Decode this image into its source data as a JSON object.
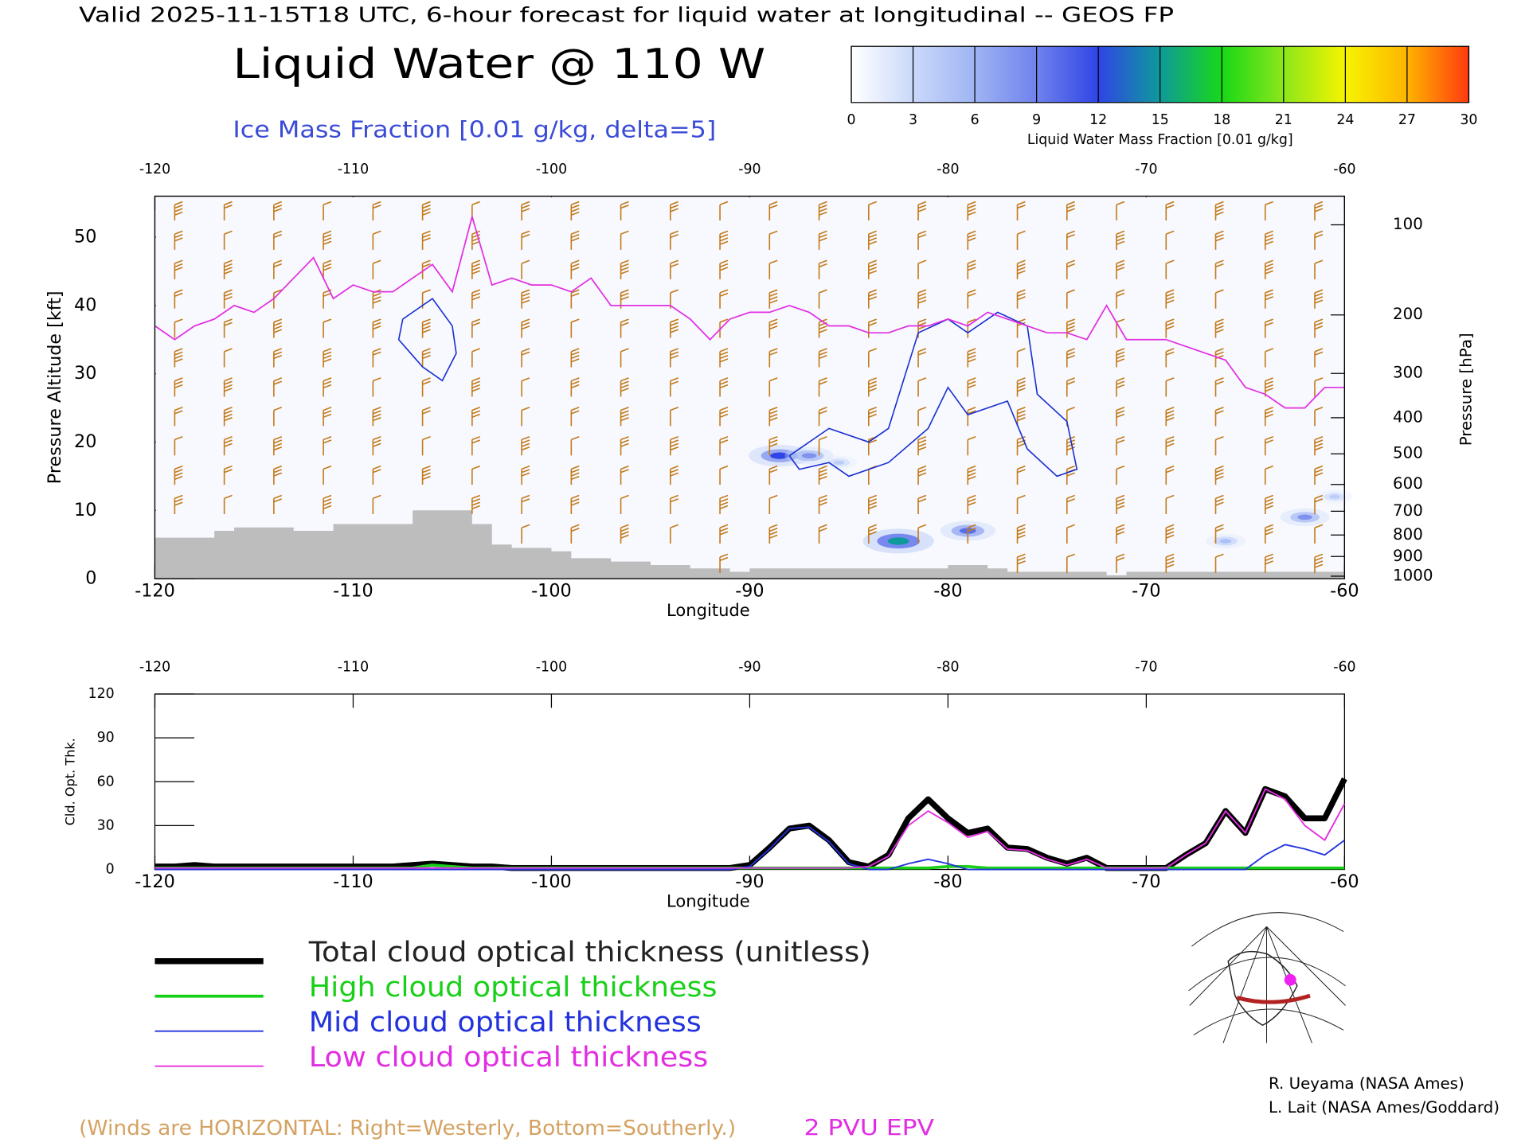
{
  "header": {
    "valid": "Valid 2025-11-15T18 UTC, 6-hour forecast for liquid water at longitudinal -- GEOS FP",
    "title": "Liquid Water @ 110 W",
    "subtitle": "Ice Mass Fraction [0.01 g/kg, delta=5]"
  },
  "colorbar": {
    "label": "Liquid Water Mass Fraction [0.01 g/kg]",
    "ticks": [
      0,
      3,
      6,
      9,
      12,
      15,
      18,
      21,
      24,
      27,
      30
    ],
    "colors": [
      "#ffffff",
      "#cad9fa",
      "#9fb4f3",
      "#6f82ec",
      "#2f45e6",
      "#0e9a9a",
      "#18d818",
      "#8ce61a",
      "#f6f400",
      "#ffb400",
      "#ff3a10"
    ]
  },
  "chart_data": [
    {
      "type": "contour",
      "xlabel": "Longitude",
      "ylabel": "Pressure Altitude [kft]",
      "y2label": "Pressure [hPa]",
      "xlim": [
        -120,
        -60
      ],
      "xticks": [
        -120,
        -110,
        -100,
        -90,
        -80,
        -70,
        -60
      ],
      "ylim": [
        0,
        56
      ],
      "yticks": [
        0,
        10,
        20,
        30,
        40,
        50
      ],
      "y2scale": "pressure-altitude",
      "y2ticks": [
        100,
        200,
        300,
        400,
        500,
        600,
        700,
        800,
        900,
        1000
      ],
      "x": [
        -120,
        -119,
        -118,
        -117,
        -116,
        -115,
        -114,
        -113,
        -112,
        -111,
        -110,
        -109,
        -108,
        -107,
        -106,
        -105,
        -104,
        -103,
        -102,
        -101,
        -100,
        -99,
        -98,
        -97,
        -96,
        -95,
        -94,
        -93,
        -92,
        -91,
        -90,
        -89,
        -88,
        -87,
        -86,
        -85,
        -84,
        -83,
        -82,
        -81,
        -80,
        -79,
        -78,
        -77,
        -76,
        -75,
        -74,
        -73,
        -72,
        -71,
        -70,
        -69,
        -68,
        -67,
        -66,
        -65,
        -64,
        -63,
        -62,
        -61,
        -60
      ],
      "series": [
        {
          "name": "2 PVU EPV",
          "color": "#e22ee2",
          "values": [
            37,
            35,
            37,
            38,
            40,
            39,
            41,
            44,
            47,
            41,
            43,
            42,
            42,
            44,
            46,
            42,
            53,
            43,
            44,
            43,
            43,
            42,
            44,
            40,
            40,
            40,
            40,
            38,
            35,
            38,
            39,
            39,
            40,
            39,
            37,
            37,
            36,
            36,
            37,
            37,
            38,
            37,
            39,
            38,
            37,
            36,
            36,
            35,
            40,
            35,
            35,
            35,
            34,
            33,
            32,
            28,
            27,
            25,
            25,
            28,
            28
          ]
        }
      ],
      "terrain": {
        "color": "#bdbdbd",
        "values": [
          6,
          6,
          6,
          7,
          7.5,
          7.5,
          7.5,
          7,
          7,
          8,
          8,
          8,
          8,
          10,
          10,
          10,
          8,
          5,
          4.5,
          4.5,
          4,
          3,
          3,
          2.5,
          2.5,
          2,
          2,
          1.5,
          1.5,
          1,
          1.5,
          1.5,
          1.5,
          1.5,
          1.5,
          1.5,
          1.5,
          1.5,
          1.5,
          1.5,
          2,
          2,
          1.5,
          1,
          1,
          1,
          1,
          1,
          0.5,
          1,
          1,
          1,
          1,
          1,
          1,
          1,
          1,
          1,
          1,
          1,
          1
        ]
      },
      "ice_contours": {
        "color": "#1a2fd0",
        "lines": [
          {
            "x": [
              -107.5,
              -106,
              -105,
              -104.8,
              -105.5,
              -106.5,
              -107.7,
              -107.5
            ],
            "values": [
              38,
              41,
              37,
              33,
              29,
              31,
              35,
              38
            ]
          },
          {
            "x": [
              -88,
              -86,
              -84,
              -83,
              -81.5,
              -80,
              -79,
              -77.5,
              -76,
              -75.5,
              -74,
              -73.5,
              -74.5,
              -76,
              -77,
              -79,
              -80,
              -81,
              -83,
              -85,
              -86,
              -87.5,
              -88
            ],
            "values": [
              18,
              22,
              20,
              22,
              36,
              38,
              36,
              39,
              37,
              27,
              23,
              16,
              15,
              19,
              26,
              24,
              28,
              22,
              17,
              15,
              17,
              16,
              18
            ]
          }
        ]
      },
      "liquid_water": {
        "x": [
          -82.5,
          -79,
          -88.5,
          -87,
          -62,
          -66,
          -85.5,
          -60.5
        ],
        "y": [
          5.5,
          7,
          18,
          18,
          9,
          5.5,
          17,
          12
        ],
        "values": [
          15,
          10,
          12,
          8,
          8,
          5,
          4,
          4
        ]
      }
    },
    {
      "type": "line",
      "xlabel": "Longitude",
      "ylabel": "Cld. Opt. Thk.",
      "xlim": [
        -120,
        -60
      ],
      "xticks": [
        -120,
        -110,
        -100,
        -90,
        -80,
        -70,
        -60
      ],
      "ylim": [
        0,
        120
      ],
      "yticks": [
        0,
        30,
        60,
        90,
        120
      ],
      "x": [
        -120,
        -119,
        -118,
        -117,
        -116,
        -115,
        -114,
        -113,
        -112,
        -111,
        -110,
        -109,
        -108,
        -107,
        -106,
        -105,
        -104,
        -103,
        -102,
        -101,
        -100,
        -99,
        -98,
        -97,
        -96,
        -95,
        -94,
        -93,
        -92,
        -91,
        -90,
        -89,
        -88,
        -87,
        -86,
        -85,
        -84,
        -83,
        -82,
        -81,
        -80,
        -79,
        -78,
        -77,
        -76,
        -75,
        -74,
        -73,
        -72,
        -71,
        -70,
        -69,
        -68,
        -67,
        -66,
        -65,
        -64,
        -63,
        -62,
        -61,
        -60
      ],
      "series": [
        {
          "name": "Total cloud optical thickness (unitless)",
          "color": "#000000",
          "width": 6,
          "values": [
            2,
            2,
            3,
            2,
            2,
            2,
            2,
            2,
            2,
            2,
            2,
            2,
            2,
            3,
            4,
            3,
            2,
            2,
            1,
            1,
            1,
            1,
            1,
            1,
            1,
            1,
            1,
            1,
            1,
            1,
            3,
            15,
            28,
            30,
            20,
            5,
            2,
            10,
            35,
            48,
            35,
            25,
            28,
            15,
            14,
            8,
            4,
            8,
            1,
            1,
            1,
            1,
            10,
            18,
            40,
            25,
            55,
            50,
            35,
            35,
            62
          ]
        },
        {
          "name": "High cloud optical thickness",
          "color": "#19d019",
          "width": 3,
          "values": [
            1,
            1,
            1,
            1,
            1,
            1,
            1,
            1,
            1,
            1,
            1,
            1,
            1,
            1,
            3,
            2,
            1,
            1,
            1,
            1,
            1,
            1,
            1,
            1,
            1,
            1,
            1,
            1,
            1,
            1,
            1,
            1,
            1,
            1,
            1,
            1,
            1,
            1,
            1,
            1,
            2,
            2,
            1,
            1,
            1,
            1,
            1,
            1,
            1,
            1,
            1,
            1,
            1,
            1,
            1,
            1,
            1,
            1,
            1,
            1,
            1
          ]
        },
        {
          "name": "Mid cloud optical thickness",
          "color": "#2233dd",
          "width": 1.5,
          "values": [
            0,
            0,
            0,
            0,
            0,
            0,
            0,
            0,
            0,
            0,
            0,
            0,
            0,
            0,
            0,
            0,
            0,
            0,
            0,
            0,
            0,
            0,
            0,
            0,
            0,
            0,
            0,
            0,
            0,
            0,
            2,
            14,
            28,
            29,
            19,
            4,
            0,
            0,
            4,
            7,
            4,
            0,
            0,
            0,
            0,
            0,
            0,
            0,
            0,
            0,
            0,
            0,
            0,
            0,
            0,
            0,
            10,
            17,
            14,
            10,
            20
          ]
        },
        {
          "name": "Low cloud optical thickness",
          "color": "#e22ee2",
          "width": 1.5,
          "values": [
            1,
            1,
            1,
            1,
            1,
            1,
            1,
            1,
            1,
            1,
            1,
            1,
            1,
            1,
            1,
            1,
            1,
            1,
            1,
            1,
            1,
            1,
            1,
            1,
            1,
            1,
            1,
            1,
            1,
            1,
            1,
            1,
            1,
            1,
            1,
            1,
            2,
            9,
            30,
            40,
            32,
            22,
            26,
            14,
            13,
            7,
            3,
            7,
            1,
            1,
            1,
            1,
            10,
            18,
            40,
            25,
            55,
            48,
            30,
            20,
            45
          ]
        }
      ]
    }
  ],
  "winds_note": "(Winds are HORIZONTAL: Right=Westerly, Bottom=Southerly.)",
  "credits": [
    "R. Ueyama (NASA Ames)",
    "L. Lait (NASA Ames/Goddard)"
  ]
}
